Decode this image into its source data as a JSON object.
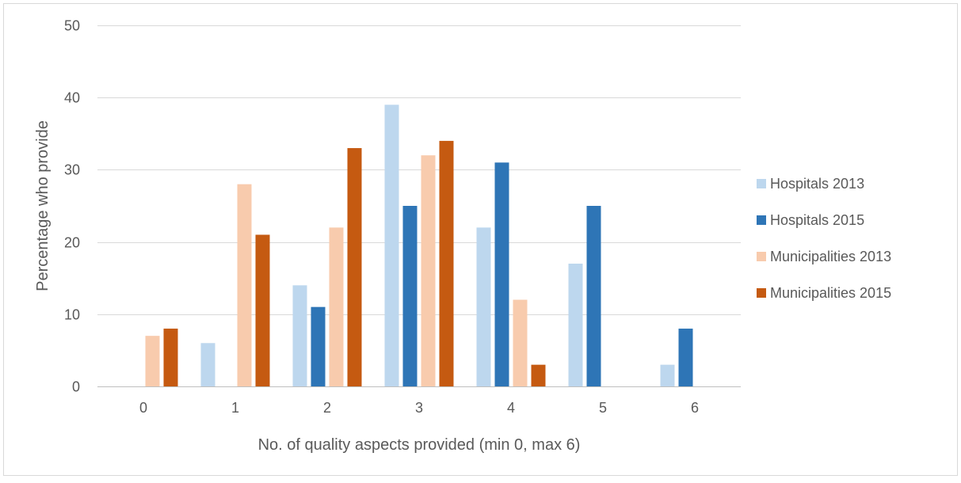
{
  "chart_data": {
    "type": "bar",
    "title": "",
    "xlabel": "No. of quality aspects provided (min 0, max 6)",
    "ylabel": "Percentage who provide",
    "categories": [
      "0",
      "1",
      "2",
      "3",
      "4",
      "5",
      "6"
    ],
    "ylim": [
      0,
      50
    ],
    "yticks": [
      "0",
      "10",
      "20",
      "30",
      "40",
      "50"
    ],
    "grid": true,
    "legend_position": "right",
    "series": [
      {
        "name": "Hospitals 2013",
        "color": "#BDD7EE",
        "values": [
          0,
          6,
          14,
          39,
          22,
          17,
          3
        ]
      },
      {
        "name": "Hospitals 2015",
        "color": "#2E75B6",
        "values": [
          0,
          0,
          11,
          25,
          31,
          25,
          8
        ]
      },
      {
        "name": "Municipalities 2013",
        "color": "#F8CBAD",
        "values": [
          7,
          28,
          22,
          32,
          12,
          0,
          0
        ]
      },
      {
        "name": "Municipalities 2015",
        "color": "#C55A11",
        "values": [
          8,
          21,
          33,
          34,
          3,
          0,
          0
        ]
      }
    ]
  }
}
